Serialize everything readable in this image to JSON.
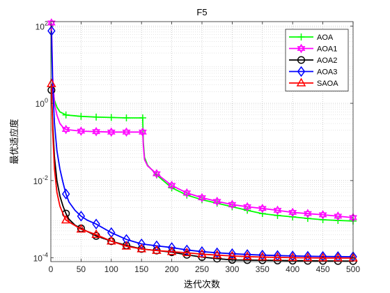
{
  "chart_data": {
    "type": "line",
    "title": "F5",
    "xlabel": "迭代次数",
    "ylabel": "最优适应度",
    "xlim": [
      0,
      500
    ],
    "ylim": [
      8e-05,
      130
    ],
    "yscale": "log",
    "grid": true,
    "minor_grid": true,
    "legend_position": "top-right",
    "x_ticks": [
      0,
      50,
      100,
      150,
      200,
      250,
      300,
      350,
      400,
      450,
      500
    ],
    "x_tick_labels": [
      "0",
      "50",
      "100",
      "150",
      "200",
      "250",
      "300",
      "350",
      "400",
      "450",
      "500"
    ],
    "y_ticks": [
      0.0001,
      0.01,
      1,
      100
    ],
    "y_tick_labels": [
      {
        "base": "10",
        "exp": "-4"
      },
      {
        "base": "10",
        "exp": "-2"
      },
      {
        "base": "10",
        "exp": "0"
      },
      {
        "base": "10",
        "exp": "2"
      }
    ],
    "series": [
      {
        "name": "AOA",
        "color": "#00ff00",
        "marker": "plus",
        "x": [
          1,
          3,
          6,
          10,
          15,
          20,
          25,
          50,
          75,
          100,
          125,
          152,
          153,
          155,
          160,
          175,
          200,
          225,
          250,
          275,
          300,
          325,
          350,
          375,
          400,
          425,
          450,
          475,
          500
        ],
        "y": [
          30,
          3,
          1.2,
          0.8,
          0.6,
          0.55,
          0.5,
          0.46,
          0.44,
          0.43,
          0.42,
          0.42,
          0.1,
          0.04,
          0.025,
          0.014,
          0.0065,
          0.0042,
          0.0032,
          0.0026,
          0.0021,
          0.0017,
          0.0014,
          0.00125,
          0.00115,
          0.00105,
          0.00097,
          0.00093,
          0.0009
        ],
        "marker_x": [
          25,
          50,
          75,
          100,
          125,
          152,
          175,
          200,
          225,
          250,
          275,
          300,
          325,
          350,
          375,
          400,
          425,
          450,
          475,
          500
        ]
      },
      {
        "name": "AOA1",
        "color": "#ff00ff",
        "marker": "hexagram",
        "x": [
          1,
          3,
          6,
          10,
          15,
          20,
          25,
          50,
          75,
          100,
          125,
          152,
          153,
          155,
          160,
          175,
          200,
          225,
          250,
          275,
          300,
          325,
          350,
          375,
          400,
          425,
          450,
          475,
          500
        ],
        "y": [
          120,
          5,
          1.0,
          0.5,
          0.3,
          0.24,
          0.21,
          0.19,
          0.185,
          0.18,
          0.18,
          0.18,
          0.08,
          0.035,
          0.024,
          0.015,
          0.0075,
          0.0048,
          0.0036,
          0.0029,
          0.0024,
          0.0021,
          0.0019,
          0.0017,
          0.0015,
          0.0014,
          0.0013,
          0.0012,
          0.0011
        ],
        "marker_x": [
          1,
          25,
          50,
          75,
          100,
          125,
          152,
          175,
          200,
          225,
          250,
          275,
          300,
          325,
          350,
          375,
          400,
          425,
          450,
          475,
          500
        ]
      },
      {
        "name": "AOA2",
        "color": "#000000",
        "marker": "circle",
        "x": [
          1,
          3,
          6,
          10,
          15,
          20,
          25,
          30,
          40,
          50,
          75,
          100,
          125,
          150,
          175,
          200,
          225,
          250,
          275,
          300,
          325,
          350,
          375,
          400,
          425,
          450,
          475,
          500
        ],
        "y": [
          2.2,
          0.3,
          0.04,
          0.01,
          0.004,
          0.0022,
          0.0014,
          0.001,
          0.0007,
          0.00058,
          0.00037,
          0.00027,
          0.00021,
          0.00017,
          0.000155,
          0.00014,
          0.00012,
          0.000105,
          9.55e-05,
          8.85e-05,
          8.75e-05,
          8.65e-05,
          8.55e-05,
          8.45e-05,
          8.4e-05,
          8.35e-05,
          8.3e-05,
          8.25e-05
        ],
        "marker_x": [
          1,
          25,
          50,
          75,
          100,
          125,
          150,
          175,
          200,
          225,
          250,
          275,
          300,
          325,
          350,
          375,
          400,
          425,
          450,
          475,
          500
        ]
      },
      {
        "name": "AOA3",
        "color": "#0000ff",
        "marker": "diamond",
        "x": [
          1,
          3,
          6,
          10,
          15,
          20,
          25,
          30,
          40,
          50,
          60,
          75,
          100,
          125,
          150,
          175,
          200,
          225,
          250,
          275,
          300,
          325,
          350,
          375,
          400,
          425,
          450,
          475,
          500
        ],
        "y": [
          75,
          3,
          0.3,
          0.06,
          0.02,
          0.009,
          0.0045,
          0.0028,
          0.0017,
          0.0012,
          0.00095,
          0.00075,
          0.00045,
          0.0003,
          0.00023,
          0.000205,
          0.000185,
          0.00016,
          0.000145,
          0.000135,
          0.000128,
          0.000122,
          0.000118,
          0.000115,
          0.000112,
          0.00011,
          0.000109,
          0.000108,
          0.000107
        ],
        "marker_x": [
          1,
          25,
          50,
          75,
          100,
          125,
          150,
          175,
          200,
          225,
          250,
          275,
          300,
          325,
          350,
          375,
          400,
          425,
          450,
          475,
          500
        ]
      },
      {
        "name": "SAOA",
        "color": "#ff0000",
        "marker": "triangle",
        "x": [
          1,
          3,
          6,
          10,
          15,
          20,
          25,
          50,
          75,
          100,
          125,
          150,
          175,
          200,
          225,
          250,
          275,
          300,
          325,
          350,
          375,
          400,
          425,
          450,
          475,
          500
        ],
        "y": [
          3.2,
          0.2,
          0.02,
          0.005,
          0.0022,
          0.0014,
          0.00095,
          0.00055,
          0.0004,
          0.00027,
          0.0002,
          0.00017,
          0.000155,
          0.000145,
          0.000135,
          0.000125,
          0.000118,
          0.000112,
          0.000108,
          0.000105,
          0.000103,
          0.000101,
          0.0001,
          9.95e-05,
          9.9e-05,
          9.85e-05
        ],
        "marker_x": [
          1,
          25,
          50,
          75,
          100,
          125,
          150,
          175,
          200,
          225,
          250,
          275,
          300,
          325,
          350,
          375,
          400,
          425,
          450,
          475,
          500
        ]
      }
    ]
  }
}
